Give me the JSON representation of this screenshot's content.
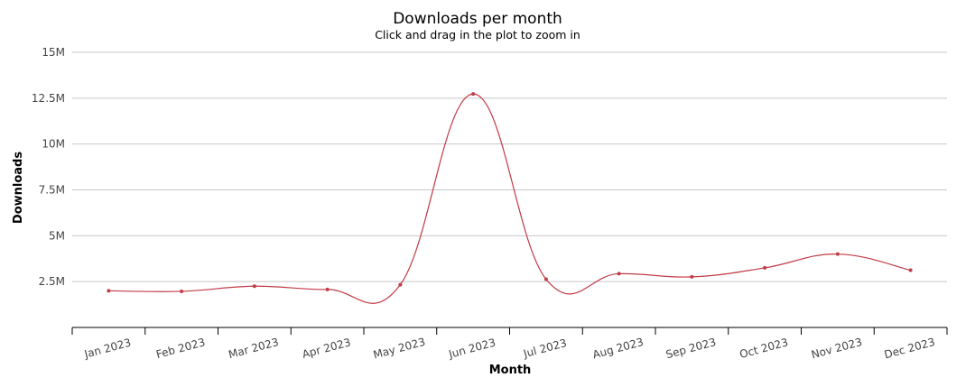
{
  "chart_data": {
    "type": "line",
    "title": "Downloads per month",
    "subtitle": "Click and drag in the plot to zoom in",
    "xlabel": "Month",
    "ylabel": "Downloads",
    "categories": [
      "Jan 2023",
      "Feb 2023",
      "Mar 2023",
      "Apr 2023",
      "May 2023",
      "Jun 2023",
      "Jul 2023",
      "Aug 2023",
      "Sep 2023",
      "Oct 2023",
      "Nov 2023",
      "Dec 2023"
    ],
    "series": [
      {
        "values": [
          2000000,
          1970000,
          2250000,
          2070000,
          2330000,
          12730000,
          2630000,
          2930000,
          2760000,
          3250000,
          4000000,
          3120000
        ],
        "color": "#c23b47"
      }
    ],
    "ylim": [
      0,
      15000000
    ],
    "yticks": [
      2500000,
      5000000,
      7500000,
      10000000,
      12500000,
      15000000
    ],
    "ytick_labels": [
      "2.5M",
      "5M",
      "7.5M",
      "10M",
      "12.5M",
      "15M"
    ],
    "grid": true,
    "legend": "none"
  }
}
